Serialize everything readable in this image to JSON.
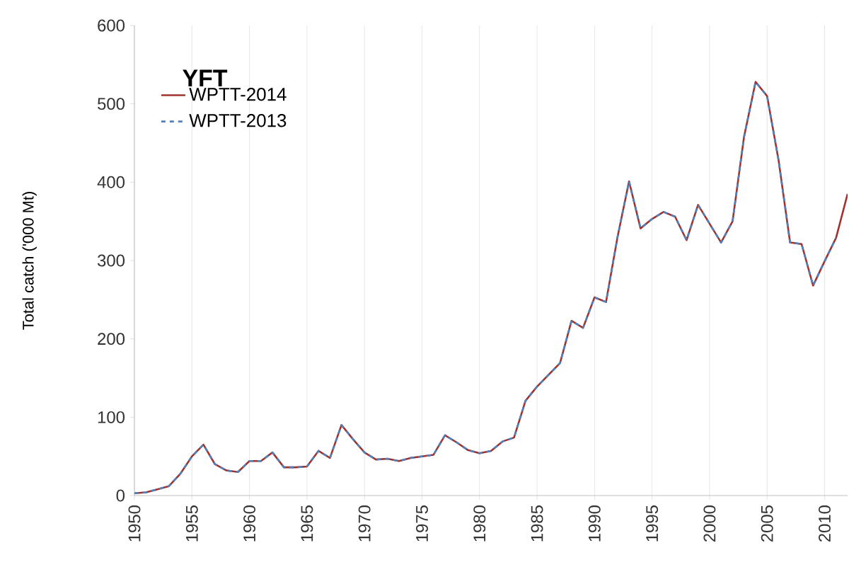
{
  "chart_data": {
    "type": "line",
    "ylabel": "Total catch ('000 Mt)",
    "legend_title": "YFT",
    "x": [
      1950,
      1951,
      1952,
      1953,
      1954,
      1955,
      1956,
      1957,
      1958,
      1959,
      1960,
      1961,
      1962,
      1963,
      1964,
      1965,
      1966,
      1967,
      1968,
      1969,
      1970,
      1971,
      1972,
      1973,
      1974,
      1975,
      1976,
      1977,
      1978,
      1979,
      1980,
      1981,
      1982,
      1983,
      1984,
      1985,
      1986,
      1987,
      1988,
      1989,
      1990,
      1991,
      1992,
      1993,
      1994,
      1995,
      1996,
      1997,
      1998,
      1999,
      2000,
      2001,
      2002,
      2003,
      2004,
      2005,
      2006,
      2007,
      2008,
      2009,
      2010,
      2011,
      2012
    ],
    "series": [
      {
        "name": "WPTT-2014",
        "color": "#a0332e",
        "line_style": "solid",
        "values": [
          3,
          4,
          8,
          12,
          28,
          50,
          65,
          40,
          32,
          30,
          44,
          44,
          55,
          36,
          36,
          37,
          57,
          48,
          90,
          72,
          55,
          46,
          47,
          44,
          48,
          50,
          52,
          77,
          68,
          58,
          54,
          57,
          69,
          74,
          121,
          139,
          154,
          169,
          223,
          214,
          253,
          247,
          330,
          401,
          341,
          353,
          362,
          356,
          326,
          371,
          347,
          323,
          350,
          458,
          528,
          510,
          428,
          323,
          321,
          268,
          299,
          329,
          385
        ]
      },
      {
        "name": "WPTT-2013",
        "color": "#4f81bd",
        "line_style": "dashed",
        "values": [
          3,
          4,
          8,
          12,
          28,
          50,
          65,
          40,
          32,
          30,
          44,
          44,
          55,
          36,
          36,
          37,
          57,
          48,
          90,
          72,
          55,
          46,
          47,
          44,
          48,
          50,
          52,
          77,
          68,
          58,
          54,
          57,
          69,
          74,
          121,
          139,
          154,
          169,
          223,
          214,
          253,
          247,
          330,
          401,
          341,
          353,
          362,
          356,
          326,
          371,
          347,
          323,
          350,
          458,
          528,
          510,
          428,
          323,
          321,
          268,
          299,
          329,
          null
        ]
      }
    ],
    "xlim": [
      1950,
      2012
    ],
    "xticks": [
      1950,
      1955,
      1960,
      1965,
      1970,
      1975,
      1980,
      1985,
      1990,
      1995,
      2000,
      2005,
      2010
    ],
    "ylim": [
      0,
      600
    ],
    "yticks": [
      0,
      100,
      200,
      300,
      400,
      500,
      600
    ],
    "grid": "x",
    "legend": "top left"
  }
}
